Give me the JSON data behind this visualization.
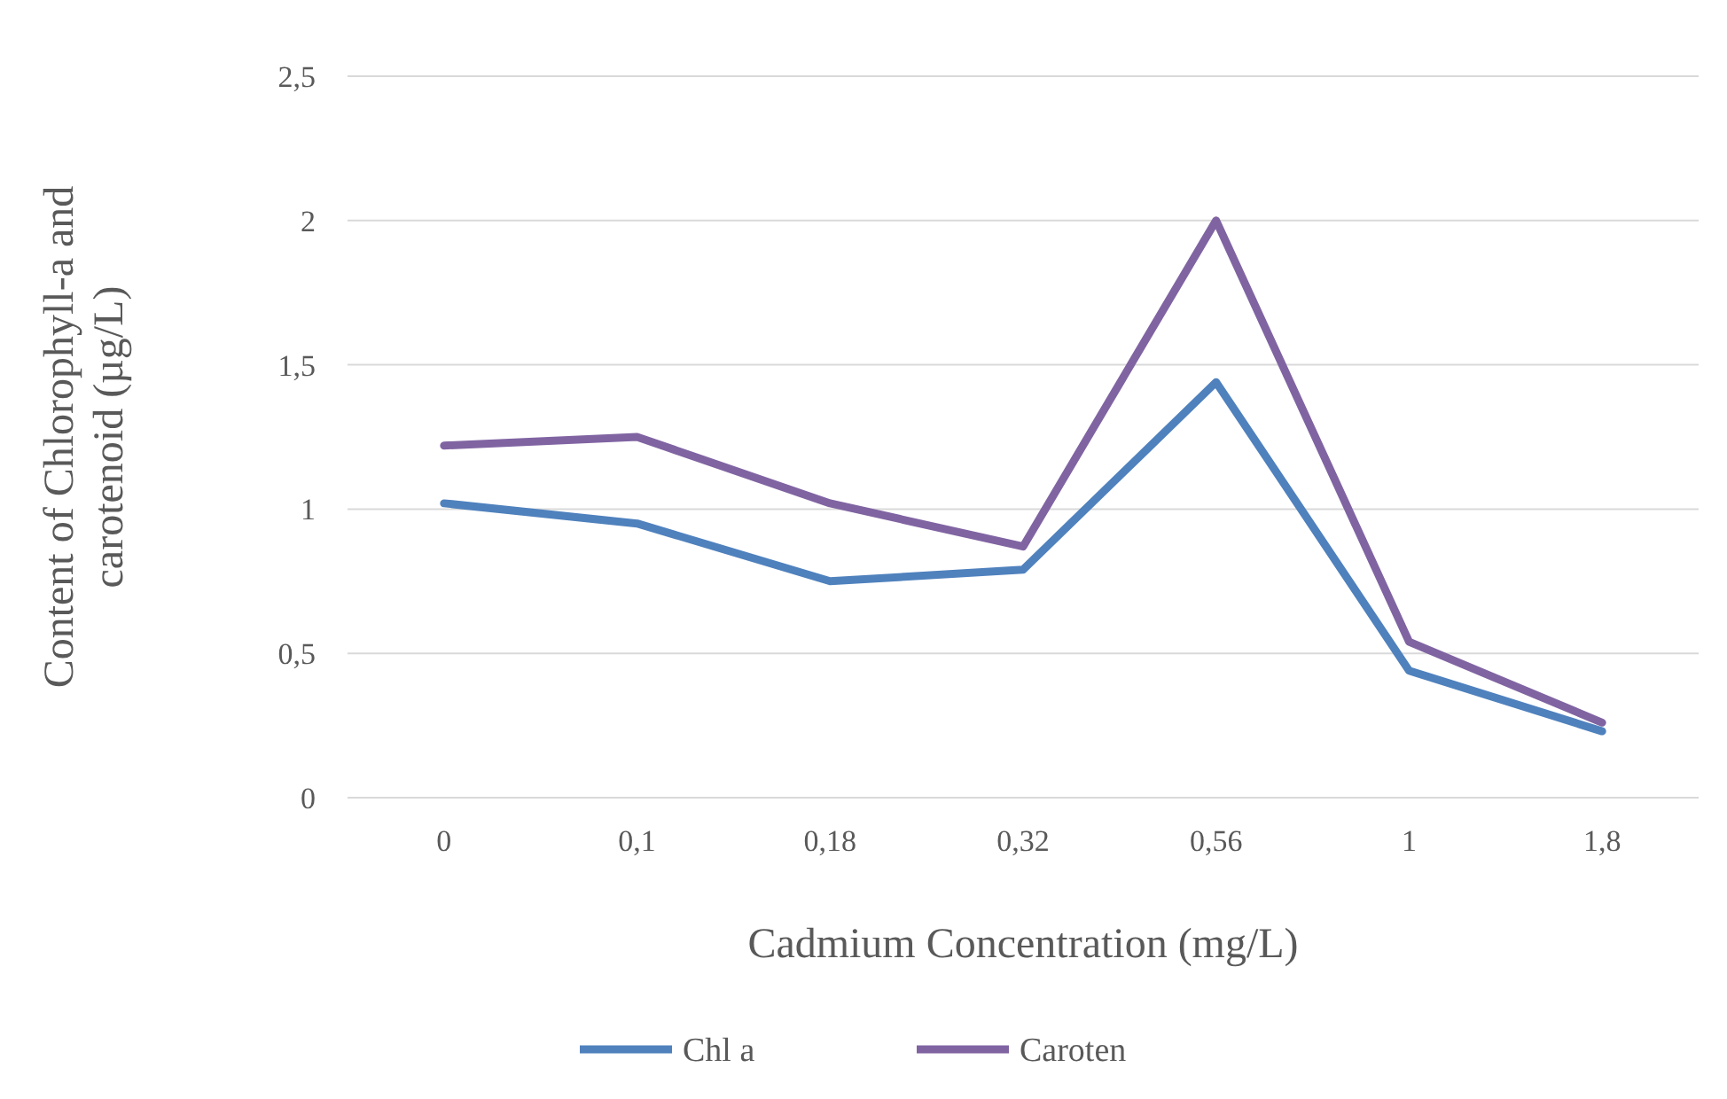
{
  "chart_data": {
    "type": "line",
    "xlabel": "Cadmium Concentration (mg/L)",
    "ylabel": "Content of Chlorophyll-a and carotenoid (µg/L)",
    "categories": [
      "0",
      "0,1",
      "0,18",
      "0,32",
      "0,56",
      "1",
      "1,8"
    ],
    "series": [
      {
        "name": "Chl a",
        "color": "#4f81bd",
        "values": [
          1.02,
          0.95,
          0.75,
          0.79,
          1.44,
          0.44,
          0.23
        ]
      },
      {
        "name": "Caroten",
        "color": "#8064a2",
        "values": [
          1.22,
          1.25,
          1.02,
          0.87,
          2.0,
          0.54,
          0.26
        ]
      }
    ],
    "ylim": [
      0,
      2.5
    ],
    "yticks": [
      0,
      {
        "value": 0.5,
        "label": "0,5"
      },
      1,
      {
        "value": 1.5,
        "label": "1,5"
      },
      2,
      {
        "value": 2.5,
        "label": "2,5"
      }
    ],
    "grid": "y",
    "legend": "bottom",
    "marker": "none",
    "line_style": "solid"
  }
}
